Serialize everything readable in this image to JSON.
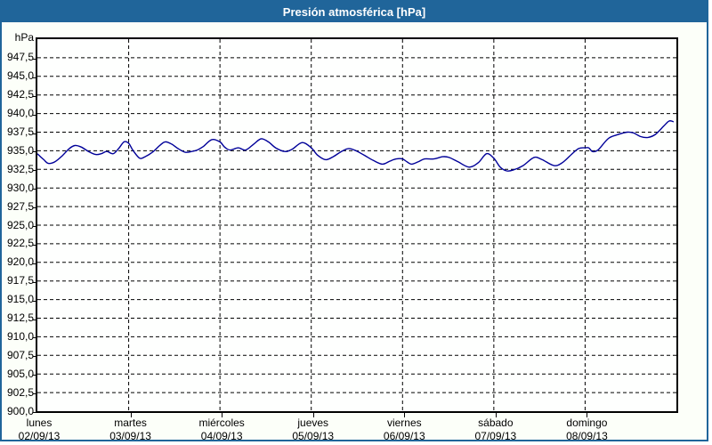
{
  "title": "Presión atmosférica [hPa]",
  "colors": {
    "titlebar": "#20659A",
    "frame_border": "#20659A",
    "background": "#FCFFF9",
    "plot_background": "#FEFFFE",
    "grid": "#000000",
    "axis": "#000000",
    "line": "#000099",
    "title_text": "#FFFFFF",
    "label_text": "#000000"
  },
  "chart_data": {
    "type": "line",
    "title": "Presión atmosférica [hPa]",
    "ylabel": "hPa",
    "xlabel": "",
    "ylim": [
      900,
      950
    ],
    "ytick_step": 2.5,
    "ytick_labels": [
      "947,5",
      "945,0",
      "942,5",
      "940,0",
      "937,5",
      "935,0",
      "932,5",
      "930,0",
      "927,5",
      "925,0",
      "922,5",
      "920,0",
      "917,5",
      "915,0",
      "912,5",
      "910,0",
      "907,5",
      "905,0",
      "902,5",
      "900,0"
    ],
    "grid": "dashed",
    "legend_position": "none",
    "x_days": [
      {
        "name": "lunes",
        "date": "02/09/13"
      },
      {
        "name": "martes",
        "date": "03/09/13"
      },
      {
        "name": "miércoles",
        "date": "04/09/13"
      },
      {
        "name": "jueves",
        "date": "05/09/13"
      },
      {
        "name": "viernes",
        "date": "06/09/13"
      },
      {
        "name": "sábado",
        "date": "07/09/13"
      },
      {
        "name": "domingo",
        "date": "08/09/13"
      }
    ],
    "series": [
      {
        "name": "Presión atmosférica",
        "color": "#000099",
        "x_unit": "days_from_2013-09-02",
        "points": [
          [
            0.0,
            934.6
          ],
          [
            0.07,
            933.8
          ],
          [
            0.12,
            933.3
          ],
          [
            0.19,
            933.5
          ],
          [
            0.27,
            934.3
          ],
          [
            0.35,
            935.3
          ],
          [
            0.41,
            935.7
          ],
          [
            0.48,
            935.5
          ],
          [
            0.56,
            934.9
          ],
          [
            0.64,
            934.5
          ],
          [
            0.7,
            934.6
          ],
          [
            0.76,
            934.9
          ],
          [
            0.83,
            934.6
          ],
          [
            0.89,
            935.3
          ],
          [
            0.95,
            936.2
          ],
          [
            1.0,
            936.0
          ],
          [
            1.05,
            935.0
          ],
          [
            1.12,
            934.0
          ],
          [
            1.18,
            934.2
          ],
          [
            1.26,
            934.8
          ],
          [
            1.34,
            935.7
          ],
          [
            1.4,
            936.2
          ],
          [
            1.47,
            935.9
          ],
          [
            1.54,
            935.3
          ],
          [
            1.62,
            934.8
          ],
          [
            1.69,
            934.9
          ],
          [
            1.75,
            935.1
          ],
          [
            1.82,
            935.6
          ],
          [
            1.91,
            936.5
          ],
          [
            2.0,
            936.2
          ],
          [
            2.05,
            935.5
          ],
          [
            2.11,
            935.1
          ],
          [
            2.2,
            935.4
          ],
          [
            2.28,
            935.1
          ],
          [
            2.37,
            935.9
          ],
          [
            2.45,
            936.6
          ],
          [
            2.53,
            936.2
          ],
          [
            2.61,
            935.4
          ],
          [
            2.71,
            934.9
          ],
          [
            2.79,
            935.2
          ],
          [
            2.9,
            936.1
          ],
          [
            3.0,
            935.4
          ],
          [
            3.07,
            934.4
          ],
          [
            3.16,
            933.8
          ],
          [
            3.24,
            934.2
          ],
          [
            3.33,
            934.9
          ],
          [
            3.41,
            935.3
          ],
          [
            3.49,
            935.0
          ],
          [
            3.58,
            934.4
          ],
          [
            3.68,
            933.7
          ],
          [
            3.78,
            933.2
          ],
          [
            3.86,
            933.6
          ],
          [
            3.93,
            933.9
          ],
          [
            4.0,
            933.9
          ],
          [
            4.05,
            933.5
          ],
          [
            4.1,
            933.2
          ],
          [
            4.17,
            933.5
          ],
          [
            4.24,
            933.9
          ],
          [
            4.34,
            933.9
          ],
          [
            4.44,
            934.2
          ],
          [
            4.51,
            934.1
          ],
          [
            4.61,
            933.5
          ],
          [
            4.73,
            932.8
          ],
          [
            4.83,
            933.4
          ],
          [
            4.92,
            934.6
          ],
          [
            5.0,
            934.0
          ],
          [
            5.07,
            932.8
          ],
          [
            5.14,
            932.3
          ],
          [
            5.21,
            932.4
          ],
          [
            5.32,
            933.0
          ],
          [
            5.44,
            934.1
          ],
          [
            5.53,
            933.8
          ],
          [
            5.66,
            933.0
          ],
          [
            5.75,
            933.4
          ],
          [
            5.85,
            934.5
          ],
          [
            5.93,
            935.3
          ],
          [
            6.0,
            935.4
          ],
          [
            6.04,
            935.4
          ],
          [
            6.08,
            934.9
          ],
          [
            6.14,
            935.1
          ],
          [
            6.25,
            936.6
          ],
          [
            6.34,
            937.1
          ],
          [
            6.46,
            937.5
          ],
          [
            6.53,
            937.4
          ],
          [
            6.61,
            936.9
          ],
          [
            6.69,
            936.8
          ],
          [
            6.77,
            937.2
          ],
          [
            6.86,
            938.3
          ],
          [
            6.92,
            939.0
          ],
          [
            6.97,
            938.9
          ]
        ]
      }
    ]
  }
}
